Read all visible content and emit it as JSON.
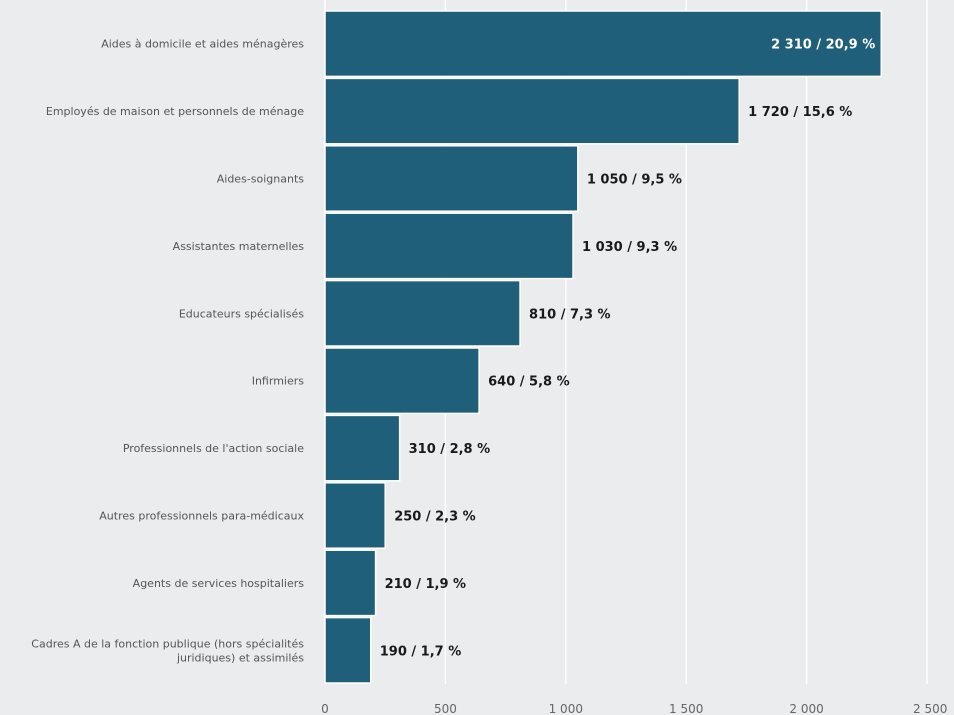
{
  "chart_data": {
    "type": "bar",
    "orientation": "horizontal",
    "categories": [
      "Aides à domicile et aides ménagères",
      "Employés de maison et personnels de ménage",
      "Aides-soignants",
      "Assistantes maternelles",
      "Educateurs spécialisés",
      "Infirmiers",
      "Professionnels de l'action sociale",
      "Autres professionnels para-médicaux",
      "Agents de services hospitaliers",
      "Cadres A de la fonction publique (hors spécialités juridiques) et assimilés"
    ],
    "values": [
      2310,
      1720,
      1050,
      1030,
      810,
      640,
      310,
      250,
      210,
      190
    ],
    "data_labels": [
      "2 310 / 20,9 %",
      "1 720 / 15,6 %",
      "1 050 / 9,5 %",
      "1 030 / 9,3 %",
      "810 / 7,3 %",
      "640 / 5,8 %",
      "310 / 2,8 %",
      "250 / 2,3 %",
      "210 / 1,9 %",
      "190 / 1,7 %"
    ],
    "xlim": [
      0,
      2500
    ],
    "x_ticks": [
      0,
      500,
      1000,
      1500,
      2000,
      2500
    ],
    "x_tick_labels": [
      "0",
      "500",
      "1 000",
      "1 500",
      "2 000",
      "2 500"
    ],
    "grid": true,
    "colors": {
      "bar": "#1f5f7a",
      "background": "#ebecee",
      "grid": "#ffffff"
    }
  }
}
